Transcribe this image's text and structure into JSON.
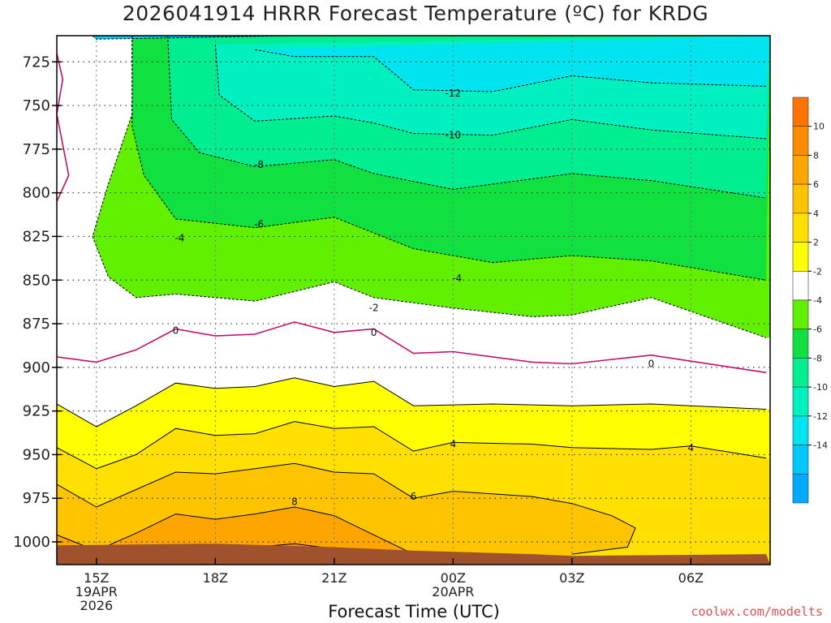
{
  "title": "2026041914 HRRR Forecast Temperature (ºC) for KRDG",
  "credit": "coolwx.com/modelts",
  "colors": {
    "ground": "#a0522d",
    "freezing_line": "#c0106a",
    "bands": {
      "-16": "#00aaff",
      "-14": "#00c8ff",
      "-12": "#00e4f0",
      "-10": "#00f0c0",
      "-8": "#00ee90",
      "-6": "#10e040",
      "-4": "#60f000",
      "-2": "#ffffff",
      "2": "#ffff00",
      "4": "#ffe000",
      "6": "#ffc400",
      "8": "#ffa500",
      "10": "#ff8c00",
      "12": "#ff7400"
    }
  },
  "chart_data": {
    "type": "heatmap",
    "title": "2026041914 HRRR Forecast Temperature (ºC) for KRDG",
    "xlabel": "Forecast Time (UTC)",
    "ylabel": "",
    "x_unit": "hours from 2026-04-19 14Z",
    "xlim": [
      14,
      32
    ],
    "ylim": [
      710,
      1013
    ],
    "y_scale": "pressure (inverted)",
    "y_ticks": [
      725,
      750,
      775,
      800,
      825,
      850,
      875,
      900,
      925,
      950,
      975,
      1000
    ],
    "x_ticks": [
      {
        "hour": 15,
        "lines": [
          "15Z",
          "19APR",
          "2026"
        ]
      },
      {
        "hour": 18,
        "lines": [
          "18Z"
        ]
      },
      {
        "hour": 21,
        "lines": [
          "21Z"
        ]
      },
      {
        "hour": 24,
        "lines": [
          "00Z",
          "20APR"
        ]
      },
      {
        "hour": 27,
        "lines": [
          "03Z"
        ]
      },
      {
        "hour": 30,
        "lines": [
          "06Z"
        ]
      }
    ],
    "grid": true,
    "colorbar": {
      "placement": "right",
      "ticks": [
        10,
        8,
        6,
        4,
        2,
        -2,
        -4,
        -6,
        -8,
        -10,
        -12,
        -14
      ]
    },
    "contours": [
      {
        "level": -14,
        "points": [
          [
            14.9,
            710
          ],
          [
            15.0,
            712
          ],
          [
            20.0,
            710
          ],
          [
            31.9,
            710
          ]
        ]
      },
      {
        "level": -12,
        "points": [
          [
            19.0,
            718
          ],
          [
            20.0,
            722
          ],
          [
            22.0,
            722
          ],
          [
            23.0,
            741
          ],
          [
            25.0,
            742
          ],
          [
            27.0,
            733
          ],
          [
            29.0,
            737
          ],
          [
            31.9,
            739
          ]
        ]
      },
      {
        "level": -10,
        "points": [
          [
            18.0,
            715
          ],
          [
            18.1,
            744
          ],
          [
            19.0,
            759
          ],
          [
            21.0,
            756
          ],
          [
            22.0,
            760
          ],
          [
            23.0,
            766
          ],
          [
            25.0,
            767
          ],
          [
            27.0,
            758
          ],
          [
            29.0,
            764
          ],
          [
            31.9,
            769
          ]
        ]
      },
      {
        "level": -8,
        "points": [
          [
            16.8,
            710
          ],
          [
            16.9,
            758
          ],
          [
            17.6,
            777
          ],
          [
            19.0,
            785
          ],
          [
            21.0,
            781
          ],
          [
            22.0,
            789
          ],
          [
            24.0,
            798
          ],
          [
            27.0,
            789
          ],
          [
            29.0,
            793
          ],
          [
            31.9,
            803
          ]
        ]
      },
      {
        "level": -6,
        "points": [
          [
            15.9,
            710
          ],
          [
            15.9,
            762
          ],
          [
            16.2,
            790
          ],
          [
            17.0,
            815
          ],
          [
            19.0,
            820
          ],
          [
            21.0,
            814
          ],
          [
            23.0,
            832
          ],
          [
            25.0,
            840
          ],
          [
            27.0,
            836
          ],
          [
            29.0,
            839
          ],
          [
            31.9,
            850
          ]
        ]
      },
      {
        "level": -4,
        "points": [
          [
            15.9,
            710
          ],
          [
            15.9,
            755
          ],
          [
            15.3,
            795
          ],
          [
            14.9,
            825
          ],
          [
            15.3,
            848
          ],
          [
            16.0,
            860
          ],
          [
            17.0,
            858
          ],
          [
            19.0,
            862
          ],
          [
            21.0,
            851
          ],
          [
            22.0,
            860
          ],
          [
            24.0,
            866
          ],
          [
            26.0,
            871
          ],
          [
            27.0,
            870
          ],
          [
            29.0,
            860
          ],
          [
            31.9,
            883
          ]
        ]
      },
      {
        "level": 0,
        "points": [
          [
            14.0,
            894
          ],
          [
            15.0,
            897
          ],
          [
            16.0,
            890
          ],
          [
            17.0,
            878
          ],
          [
            18.0,
            882
          ],
          [
            19.0,
            881
          ],
          [
            20.0,
            874
          ],
          [
            21.0,
            880
          ],
          [
            22.0,
            878
          ],
          [
            23.0,
            892
          ],
          [
            24.0,
            891
          ],
          [
            26.0,
            897
          ],
          [
            27.0,
            898
          ],
          [
            29.0,
            893
          ],
          [
            31.9,
            903
          ]
        ]
      },
      {
        "level": 2,
        "points": [
          [
            14.0,
            921
          ],
          [
            15.0,
            934
          ],
          [
            16.0,
            922
          ],
          [
            17.0,
            909
          ],
          [
            18.0,
            912
          ],
          [
            19.0,
            911
          ],
          [
            20.0,
            906
          ],
          [
            21.0,
            911
          ],
          [
            22.0,
            908
          ],
          [
            23.0,
            922
          ],
          [
            25.0,
            921
          ],
          [
            27.0,
            922
          ],
          [
            29.0,
            921
          ],
          [
            31.9,
            924
          ]
        ]
      },
      {
        "level": 4,
        "points": [
          [
            14.0,
            946
          ],
          [
            15.0,
            958
          ],
          [
            16.0,
            950
          ],
          [
            17.0,
            935
          ],
          [
            18.0,
            939
          ],
          [
            19.0,
            938
          ],
          [
            20.0,
            931
          ],
          [
            21.0,
            935
          ],
          [
            22.0,
            934
          ],
          [
            23.0,
            948
          ],
          [
            24.0,
            943
          ],
          [
            26.0,
            944
          ],
          [
            27.0,
            946
          ],
          [
            29.0,
            947
          ],
          [
            30.0,
            945
          ],
          [
            31.9,
            952
          ]
        ]
      },
      {
        "level": 6,
        "points": [
          [
            14.0,
            967
          ],
          [
            15.0,
            980
          ],
          [
            16.0,
            970
          ],
          [
            17.0,
            960
          ],
          [
            18.0,
            961
          ],
          [
            19.0,
            958
          ],
          [
            20.0,
            955
          ],
          [
            21.0,
            960
          ],
          [
            22.0,
            961
          ],
          [
            23.0,
            975
          ],
          [
            24.0,
            971
          ],
          [
            26.0,
            974
          ],
          [
            27.0,
            978
          ],
          [
            28.0,
            985
          ],
          [
            28.6,
            992
          ],
          [
            28.4,
            1003
          ],
          [
            27.0,
            1007
          ]
        ]
      },
      {
        "level": 8,
        "points": [
          [
            14.0,
            996
          ],
          [
            15.0,
            1005
          ],
          [
            16.0,
            995
          ],
          [
            17.0,
            984
          ],
          [
            18.0,
            987
          ],
          [
            19.0,
            984
          ],
          [
            20.0,
            980
          ],
          [
            21.0,
            985
          ],
          [
            22.0,
            996
          ],
          [
            23.0,
            1007
          ]
        ]
      },
      {
        "level": 10,
        "points": [
          [
            18.5,
            1005
          ],
          [
            19.0,
            1003
          ],
          [
            20.0,
            1001
          ],
          [
            21.0,
            1004
          ],
          [
            21.5,
            1008
          ]
        ]
      }
    ],
    "contour_labels": [
      {
        "text": "-12",
        "x": 24.0,
        "y": 743
      },
      {
        "text": "-10",
        "x": 24.0,
        "y": 767
      },
      {
        "text": "-8",
        "x": 19.1,
        "y": 784
      },
      {
        "text": "-6",
        "x": 19.1,
        "y": 818
      },
      {
        "text": "-4",
        "x": 17.1,
        "y": 826
      },
      {
        "text": "-4",
        "x": 24.1,
        "y": 849
      },
      {
        "text": "-2",
        "x": 22.0,
        "y": 866
      },
      {
        "text": "0",
        "x": 17.0,
        "y": 879
      },
      {
        "text": "0",
        "x": 22.0,
        "y": 880
      },
      {
        "text": "0",
        "x": 29.0,
        "y": 898
      },
      {
        "text": "4",
        "x": 24.0,
        "y": 944
      },
      {
        "text": "4",
        "x": 30.0,
        "y": 946
      },
      {
        "text": "6",
        "x": 23.0,
        "y": 974
      },
      {
        "text": "8",
        "x": 20.0,
        "y": 977
      }
    ],
    "surface": [
      [
        14.0,
        1002
      ],
      [
        18.0,
        1001
      ],
      [
        21.0,
        1003
      ],
      [
        23.0,
        1005
      ],
      [
        26.0,
        1007
      ],
      [
        27.0,
        1008
      ],
      [
        31.9,
        1007
      ]
    ]
  }
}
